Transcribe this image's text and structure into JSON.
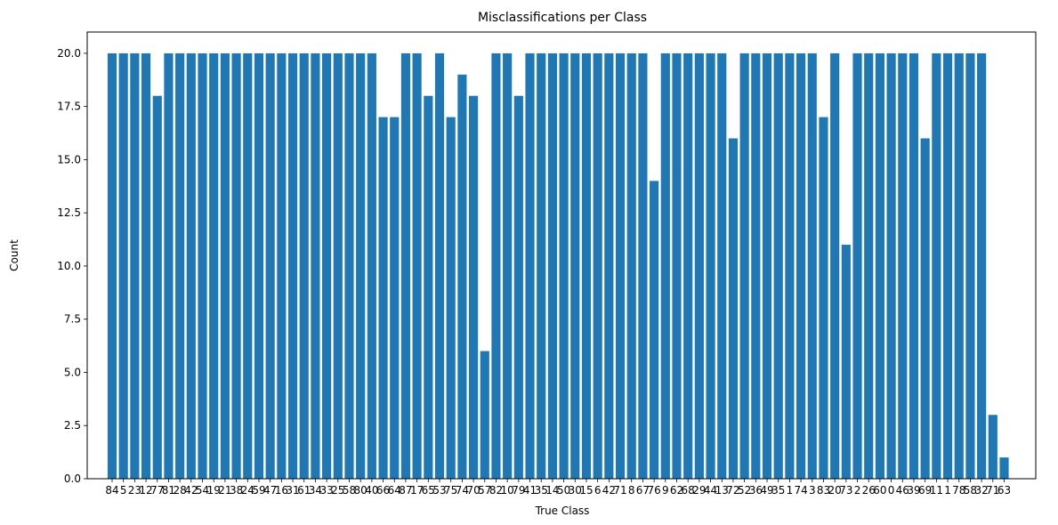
{
  "chart_data": {
    "type": "bar",
    "title": "Misclassifications per Class",
    "xlabel": "True Class",
    "ylabel": "Count",
    "ylim": [
      0,
      21
    ],
    "yticks": [
      "0.0",
      "2.5",
      "5.0",
      "7.5",
      "10.0",
      "12.5",
      "15.0",
      "17.5",
      "20.0"
    ],
    "bar_color": "#1f77b4",
    "grid": false,
    "categories": [
      "84",
      "5",
      "23",
      "12",
      "77",
      "81",
      "28",
      "42",
      "54",
      "19",
      "21",
      "38",
      "24",
      "59",
      "47",
      "16",
      "31",
      "61",
      "34",
      "33",
      "25",
      "58",
      "80",
      "40",
      "66",
      "64",
      "87",
      "17",
      "65",
      "53",
      "75",
      "74",
      "70",
      "57",
      "82",
      "10",
      "79",
      "41",
      "35",
      "14",
      "50",
      "30",
      "15",
      "6",
      "42",
      "71",
      "8",
      "67",
      "76",
      "9",
      "62",
      "68",
      "29",
      "44",
      "13",
      "72",
      "52",
      "36",
      "49",
      "35",
      "1",
      "74",
      "3",
      "83",
      "20",
      "73",
      "2",
      "26",
      "60",
      "0",
      "46",
      "39",
      "69",
      "11",
      "1",
      "78",
      "58",
      "32",
      "71",
      "63"
    ],
    "values": [
      20,
      20,
      20,
      20,
      18,
      20,
      20,
      20,
      20,
      20,
      20,
      20,
      20,
      20,
      20,
      20,
      20,
      20,
      20,
      20,
      20,
      20,
      20,
      20,
      17,
      17,
      20,
      20,
      18,
      20,
      17,
      19,
      18,
      6,
      20,
      20,
      18,
      20,
      20,
      20,
      20,
      20,
      20,
      20,
      20,
      20,
      20,
      20,
      14,
      20,
      20,
      20,
      20,
      20,
      20,
      16,
      20,
      20,
      20,
      20,
      20,
      20,
      20,
      17,
      20,
      11,
      20,
      20,
      20,
      20,
      20,
      20,
      16,
      20,
      20,
      20,
      20,
      20,
      3,
      1
    ]
  }
}
